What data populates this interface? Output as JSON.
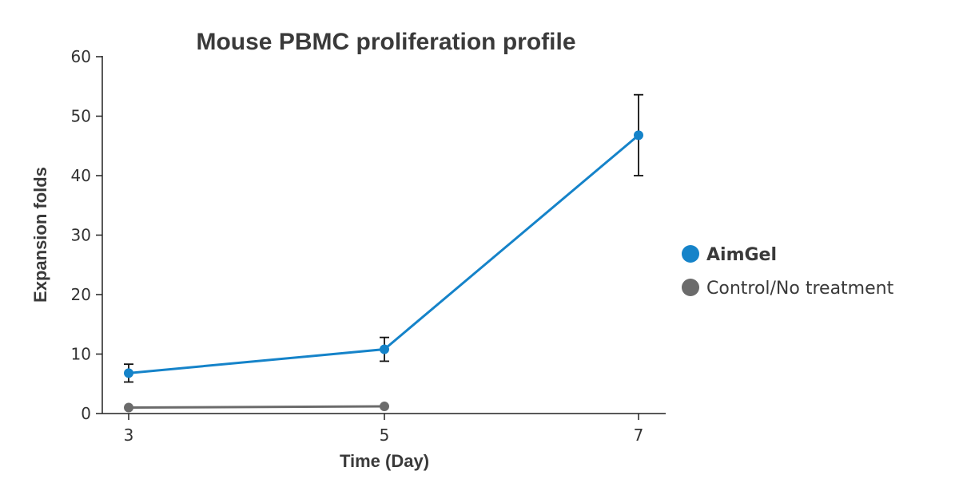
{
  "chart_data": {
    "type": "line",
    "title": "Mouse PBMC proliferation profile",
    "xlabel": "Time (Day)",
    "ylabel": "Expansion folds",
    "x": [
      3,
      5,
      7
    ],
    "x_ticks": [
      "3",
      "5",
      "7"
    ],
    "y_ticks": [
      "0",
      "10",
      "20",
      "30",
      "40",
      "50",
      "60"
    ],
    "ylim": [
      0,
      60
    ],
    "grid": false,
    "legend_position": "right",
    "series": [
      {
        "name": "AimGel",
        "color": "#1583c9",
        "x": [
          3,
          5,
          7
        ],
        "values": [
          6.8,
          10.8,
          46.8
        ],
        "error_low": [
          5.3,
          8.8,
          40.0
        ],
        "error_high": [
          8.3,
          12.8,
          53.6
        ]
      },
      {
        "name": "Control/No treatment",
        "color": "#6b6b6b",
        "x": [
          3,
          5
        ],
        "values": [
          1.0,
          1.2
        ]
      }
    ]
  }
}
